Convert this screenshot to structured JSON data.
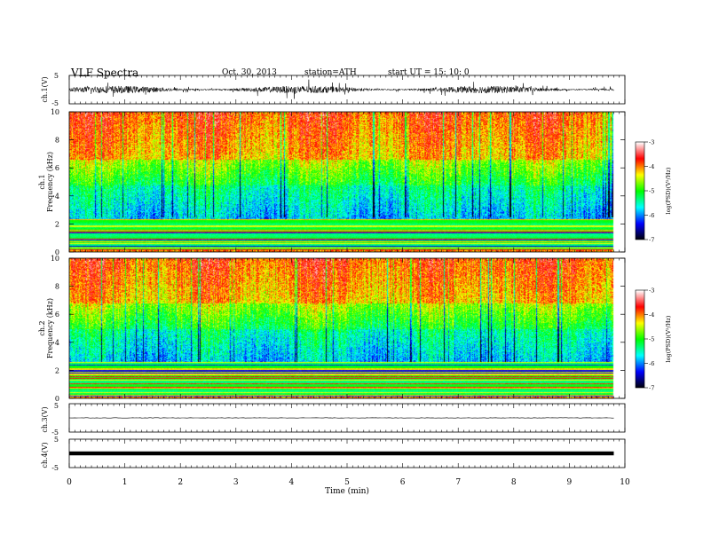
{
  "header": {
    "title": "VLF  Spectra",
    "date": "Oct. 30, 2013",
    "station": "station=ATH",
    "start": "start  UT  =    15: 10: 0"
  },
  "chart_data": [
    {
      "type": "line",
      "panel": "ch1-waveform",
      "ylabel": "ch.1(V)",
      "ylim": [
        -5,
        5
      ],
      "yticks": [
        "5",
        "-5"
      ],
      "x_units": "min",
      "xlim": [
        0,
        10
      ],
      "data_end": 9.8,
      "noise_amplitude": 1.3
    },
    {
      "type": "heatmap",
      "panel": "ch1-spectrogram",
      "ylabel": "ch.1",
      "ylabel2": "Frequency  (kHz)",
      "ylim": [
        0,
        10
      ],
      "yticks": [
        "0",
        "2",
        "4",
        "6",
        "8",
        "10"
      ],
      "xlim": [
        0,
        10
      ],
      "data_end": 9.8,
      "colorbar": {
        "label": "log(PSD)(V²/Hz)",
        "ticks": [
          "-3",
          "-4",
          "-5",
          "-6",
          "-7"
        ],
        "range": [
          -7,
          -3
        ]
      },
      "band_structure_khz": {
        "low_lines_below": 2.4,
        "blue_band": [
          2.4,
          4.8
        ],
        "green_band": [
          4.8,
          6.6
        ],
        "red_above": 6.6
      }
    },
    {
      "type": "heatmap",
      "panel": "ch2-spectrogram",
      "ylabel": "ch.2",
      "ylabel2": "Frequency  (kHz)",
      "ylim": [
        0,
        10
      ],
      "yticks": [
        "0",
        "2",
        "4",
        "6",
        "8",
        "10"
      ],
      "xlim": [
        0,
        10
      ],
      "data_end": 9.8,
      "colorbar": {
        "label": "log(PSD)(V²/Hz)",
        "ticks": [
          "-3",
          "-4",
          "-5",
          "-6",
          "-7"
        ],
        "range": [
          -7,
          -3
        ]
      },
      "band_structure_khz": {
        "low_lines_below": 2.6,
        "blue_band": [
          2.6,
          5.0
        ],
        "green_band": [
          5.0,
          6.8
        ],
        "red_above": 6.8
      }
    },
    {
      "type": "line",
      "panel": "ch3-waveform",
      "ylabel": "ch.3(V)",
      "ylim": [
        -5,
        5
      ],
      "yticks": [
        "5",
        "-5"
      ],
      "xlim": [
        0,
        10
      ],
      "data_end": 9.8,
      "level": 0
    },
    {
      "type": "line",
      "panel": "ch4-waveform",
      "ylabel": "ch.4(V)",
      "ylim": [
        -5,
        5
      ],
      "yticks": [
        "5",
        "-5"
      ],
      "xlim": [
        0,
        10
      ],
      "data_end": 9.8,
      "level": 0,
      "xlabel": "Time  (min)",
      "xticks": [
        "0",
        "1",
        "2",
        "3",
        "4",
        "5",
        "6",
        "7",
        "8",
        "9",
        "10"
      ]
    }
  ],
  "colors": {
    "colormap": [
      "#000000",
      "#0000ff",
      "#00ffff",
      "#00ff00",
      "#ffff00",
      "#ff0000",
      "#ffffff"
    ]
  }
}
